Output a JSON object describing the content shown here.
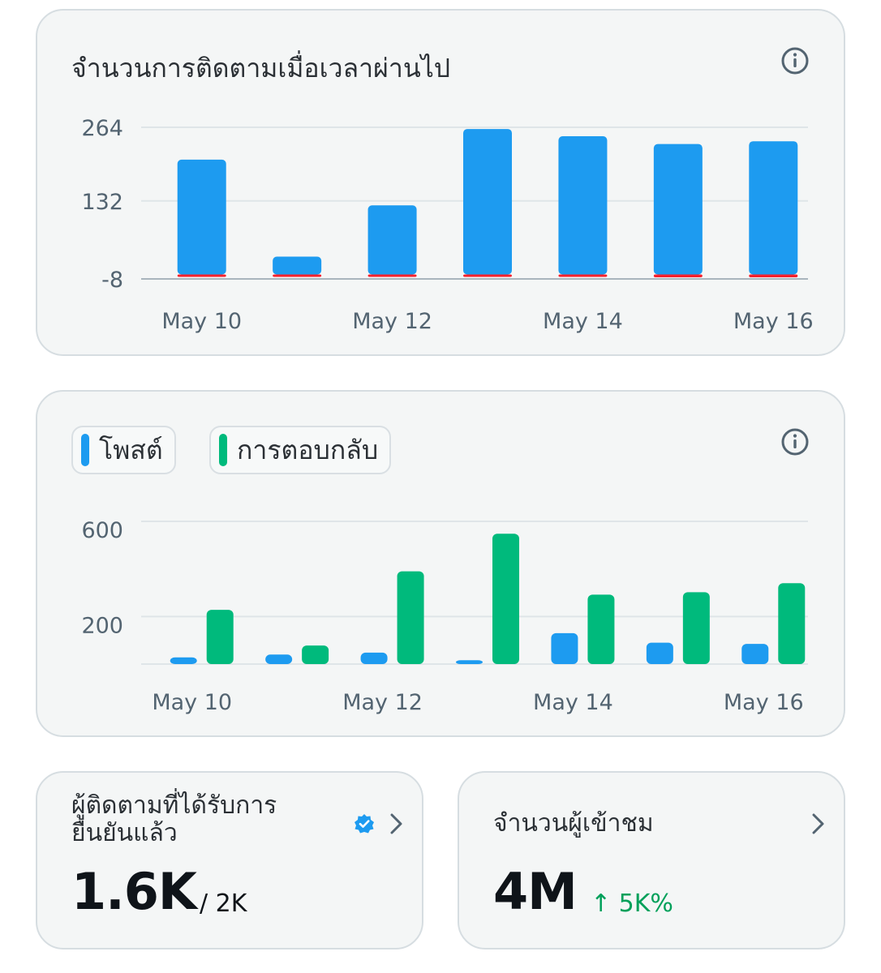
{
  "followers_chart": {
    "title": "จำนวนการติดตามเมื่อเวลาผ่านไป",
    "info_icon": "info-icon",
    "chart_data": {
      "type": "bar",
      "title": "จำนวนการติดตามเมื่อเวลาผ่านไป",
      "categories": [
        "May 10",
        "May 11",
        "May 12",
        "May 13",
        "May 14",
        "May 15",
        "May 16"
      ],
      "x_tick_labels": [
        "May 10",
        "May 12",
        "May 14",
        "May 16"
      ],
      "y_tick_labels": [
        "264",
        "132",
        "-8"
      ],
      "ylim": [
        -8,
        264
      ],
      "grid": true,
      "series": [
        {
          "values": [
            206,
            32,
            124,
            261,
            248,
            234,
            239
          ],
          "color": "#1d9bf0"
        },
        {
          "values": [
            -2,
            -2,
            -2,
            -2,
            -1,
            -5,
            -5
          ],
          "color": "#f4212e"
        }
      ]
    }
  },
  "posts_replies_chart": {
    "legend": [
      {
        "label": "โพสต์",
        "color": "#1d9bf0"
      },
      {
        "label": "การตอบกลับ",
        "color": "#00ba7c"
      }
    ],
    "info_icon": "info-icon",
    "chart_data": {
      "type": "bar",
      "categories": [
        "May 10",
        "May 11",
        "May 12",
        "May 13",
        "May 14",
        "May 15",
        "May 16"
      ],
      "x_tick_labels": [
        "May 10",
        "May 12",
        "May 14",
        "May 16"
      ],
      "y_tick_labels": [
        "600",
        "200"
      ],
      "ylim": [
        0,
        600
      ],
      "grid": true,
      "series": [
        {
          "name": "โพสต์",
          "values": [
            28,
            40,
            48,
            16,
            130,
            90,
            85
          ],
          "color": "#1d9bf0"
        },
        {
          "name": "การตอบกลับ",
          "values": [
            228,
            78,
            390,
            548,
            292,
            302,
            340
          ],
          "color": "#00ba7c"
        }
      ]
    }
  },
  "verified_followers": {
    "title": "ผู้ติดตามที่ได้รับการยืนยันแล้ว",
    "value": "1.6K",
    "total": "/ 2K",
    "badge_icon": "verified-badge-icon",
    "chevron_icon": "chevron-right-icon"
  },
  "audience": {
    "title": "จำนวนผู้เข้าชม",
    "value": "4M",
    "change": "↑ 5K%",
    "chevron_icon": "chevron-right-icon"
  },
  "colors": {
    "posts": "#1d9bf0",
    "replies": "#00ba7c",
    "negative": "#f4212e",
    "positive_change": "#00a05a"
  }
}
